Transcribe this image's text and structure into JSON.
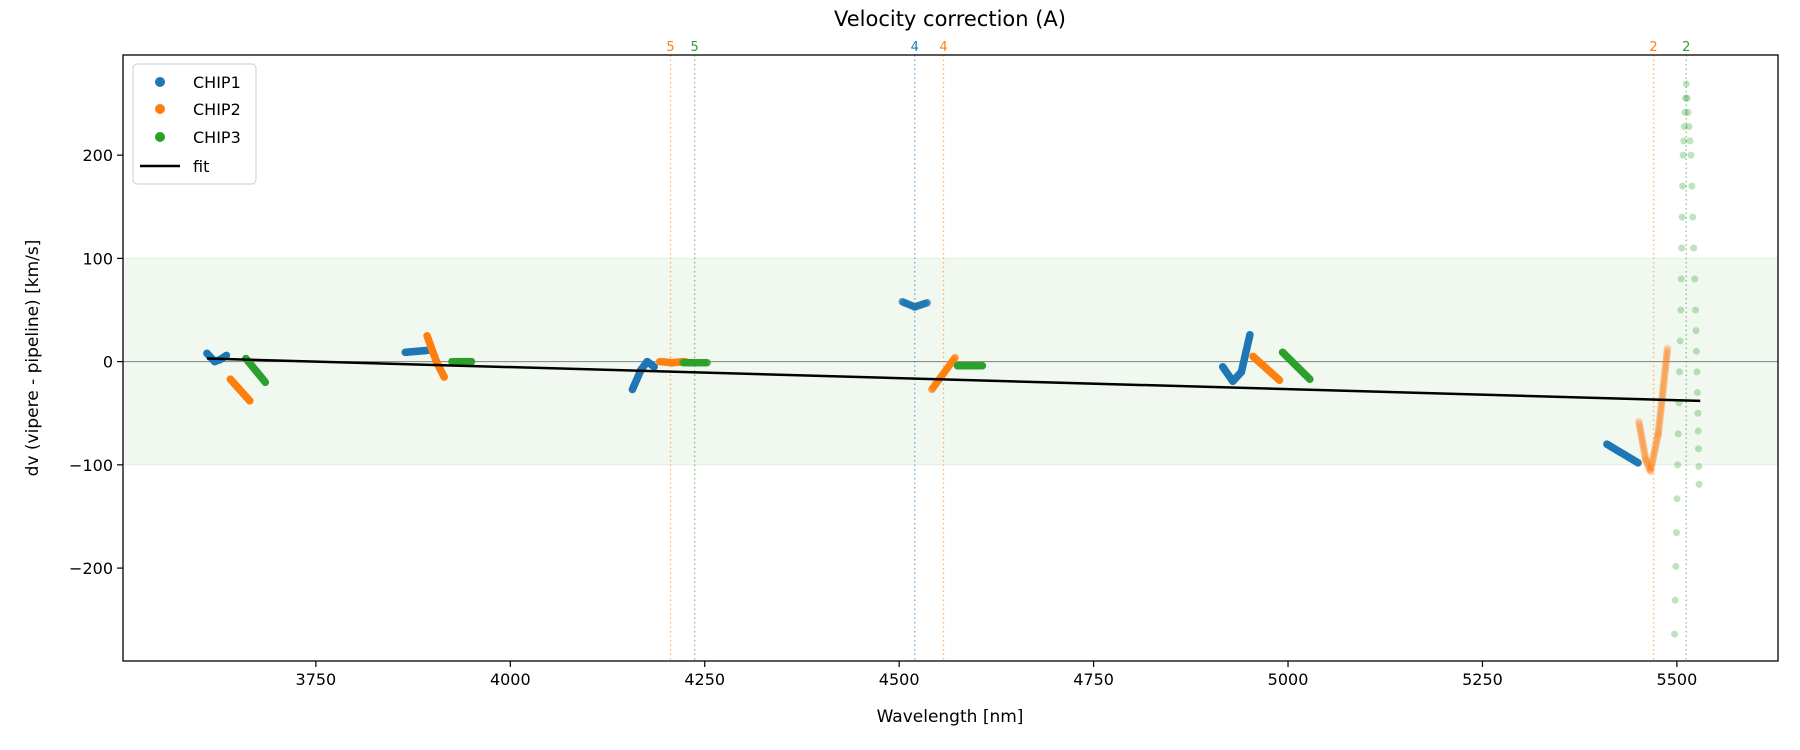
{
  "chart_data": {
    "type": "scatter",
    "title": "Velocity correction (A)",
    "xlabel": "Wavelength [nm]",
    "ylabel": "dv (vipere - pipeline) [km/s]",
    "xlim": [
      3502,
      5630
    ],
    "ylim": [
      -290,
      297
    ],
    "xticks": [
      3750,
      4000,
      4250,
      4500,
      4750,
      5000,
      5250,
      5500
    ],
    "yticks": [
      -200,
      -100,
      0,
      100,
      200
    ],
    "xtick_labels": [
      "3750",
      "4000",
      "4250",
      "4500",
      "4750",
      "5000",
      "5250",
      "5500"
    ],
    "ytick_labels": [
      "−200",
      "−100",
      "0",
      "100",
      "200"
    ],
    "grid": false,
    "band": {
      "y": [
        -100,
        100
      ],
      "color": "#2ca02c"
    },
    "zero_line": 0,
    "legend": {
      "position": "top-left",
      "entries": [
        "CHIP1",
        "CHIP2",
        "CHIP3",
        "fit"
      ]
    },
    "series": [
      {
        "name": "CHIP1",
        "color": "#1f77b4",
        "segments": [
          {
            "alpha": 1,
            "points": [
              [
                3610,
                8
              ],
              [
                3620,
                0
              ],
              [
                3627,
                2
              ],
              [
                3635,
                6
              ]
            ]
          },
          {
            "alpha": 1,
            "points": [
              [
                3865,
                9
              ],
              [
                3895,
                11
              ]
            ]
          },
          {
            "alpha": 1,
            "points": [
              [
                4157,
                -27
              ],
              [
                4168,
                -8
              ],
              [
                4176,
                0
              ],
              [
                4185,
                -5
              ]
            ]
          },
          {
            "alpha": 0.7,
            "points": [
              [
                4504,
                58
              ],
              [
                4520,
                53
              ],
              [
                4536,
                57
              ]
            ]
          },
          {
            "alpha": 1,
            "points": [
              [
                4916,
                -5
              ],
              [
                4929,
                -19
              ],
              [
                4940,
                -10
              ],
              [
                4951,
                26
              ]
            ]
          },
          {
            "alpha": 1,
            "points": [
              [
                5410,
                -80
              ],
              [
                5450,
                -98
              ]
            ]
          }
        ]
      },
      {
        "name": "CHIP2",
        "color": "#ff7f0e",
        "segments": [
          {
            "alpha": 1,
            "points": [
              [
                3640,
                -17
              ],
              [
                3665,
                -38
              ]
            ]
          },
          {
            "alpha": 1,
            "points": [
              [
                3893,
                25
              ],
              [
                3905,
                0
              ],
              [
                3915,
                -15
              ]
            ]
          },
          {
            "alpha": 0.9,
            "points": [
              [
                4192,
                0
              ],
              [
                4208,
                -1
              ],
              [
                4225,
                0
              ]
            ]
          },
          {
            "alpha": 0.6,
            "points": [
              [
                4542,
                -27
              ],
              [
                4572,
                4
              ]
            ]
          },
          {
            "alpha": 1,
            "points": [
              [
                4955,
                5
              ],
              [
                4989,
                -18
              ]
            ]
          },
          {
            "alpha": 0.2,
            "points": [
              [
                5451,
                -58
              ],
              [
                5460,
                -95
              ],
              [
                5466,
                -106
              ],
              [
                5476,
                -70
              ],
              [
                5488,
                13
              ]
            ]
          }
        ]
      },
      {
        "name": "CHIP3",
        "color": "#2ca02c",
        "segments": [
          {
            "alpha": 1,
            "points": [
              [
                3660,
                3
              ],
              [
                3685,
                -20
              ]
            ]
          },
          {
            "alpha": 1,
            "points": [
              [
                3925,
                0
              ],
              [
                3950,
                0
              ]
            ]
          },
          {
            "alpha": 0.8,
            "points": [
              [
                4222,
                -1
              ],
              [
                4253,
                -1
              ]
            ]
          },
          {
            "alpha": 1,
            "points": [
              [
                4575,
                -4
              ],
              [
                4607,
                -4
              ]
            ]
          },
          {
            "alpha": 1,
            "points": [
              [
                4993,
                9
              ],
              [
                5028,
                -17
              ]
            ]
          },
          {
            "alpha": 0.15,
            "sparse": true,
            "points": [
              [
                5497,
                -264
              ],
              [
                5501,
                -100
              ],
              [
                5505,
                50
              ],
              [
                5508,
                200
              ],
              [
                5512,
                269
              ],
              [
                5518,
                200
              ],
              [
                5524,
                50
              ],
              [
                5527,
                -50
              ],
              [
                5529,
                -136
              ]
            ]
          }
        ]
      }
    ],
    "fit": {
      "name": "fit",
      "color": "#000000",
      "points": [
        [
          3610,
          3
        ],
        [
          5530,
          -38
        ]
      ]
    },
    "markers": [
      {
        "x": 4206,
        "label": "5",
        "color": "#ff7f0e"
      },
      {
        "x": 4237,
        "label": "5",
        "color": "#2ca02c"
      },
      {
        "x": 4520,
        "label": "4",
        "color": "#1f77b4"
      },
      {
        "x": 4557,
        "label": "4",
        "color": "#ff7f0e"
      },
      {
        "x": 5470,
        "label": "2",
        "color": "#ff7f0e"
      },
      {
        "x": 5512,
        "label": "2",
        "color": "#2ca02c"
      }
    ]
  }
}
